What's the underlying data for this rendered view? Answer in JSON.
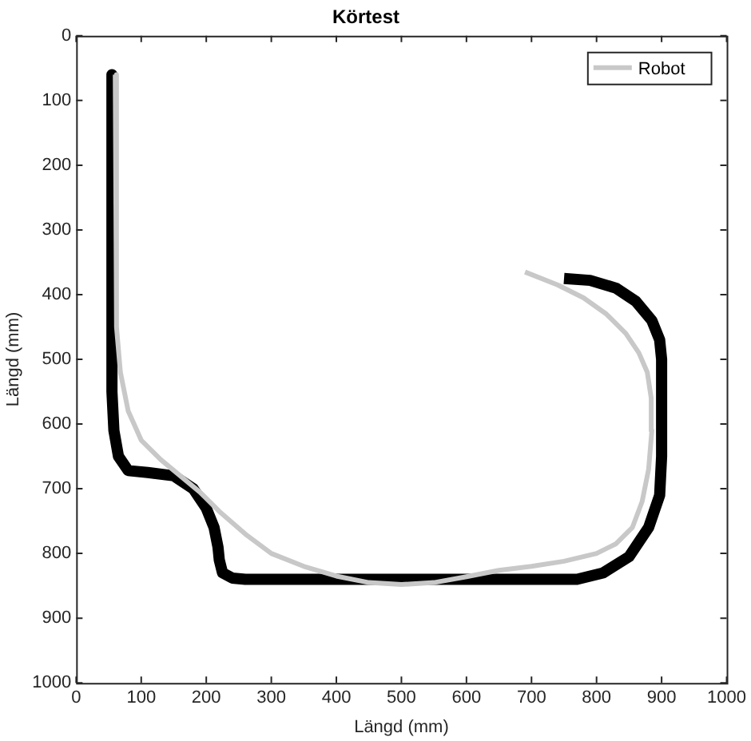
{
  "chart_data": {
    "type": "line",
    "title": "Körtest",
    "xlabel": "Längd (mm)",
    "ylabel": "Längd (mm)",
    "xlim": [
      0,
      1000
    ],
    "xticks": [
      0,
      100,
      200,
      300,
      400,
      500,
      600,
      700,
      800,
      900,
      1000
    ],
    "ylim": [
      1000,
      0
    ],
    "yticks": [
      0,
      100,
      200,
      300,
      400,
      500,
      600,
      700,
      800,
      900,
      1000
    ],
    "grid": false,
    "legend": "top right",
    "marker": "none",
    "line_style": "solid",
    "series": [
      {
        "color": "#000000",
        "x": [
          55,
          55,
          58,
          65,
          80,
          110,
          150,
          180,
          200,
          212,
          218,
          220,
          225,
          240,
          260,
          290,
          400,
          500,
          600,
          700,
          770,
          810,
          850,
          880,
          897,
          900,
          900,
          897,
          885,
          860,
          830,
          790,
          750
        ],
        "values": [
          60,
          550,
          610,
          650,
          672,
          675,
          680,
          700,
          730,
          760,
          790,
          810,
          830,
          838,
          840,
          840,
          840,
          840,
          840,
          840,
          840,
          830,
          805,
          760,
          710,
          650,
          500,
          470,
          440,
          410,
          390,
          378,
          375
        ]
      },
      {
        "name": "Robot",
        "color": "#c8c8c8",
        "x": [
          60,
          62,
          68,
          80,
          100,
          130,
          160,
          190,
          220,
          260,
          300,
          350,
          400,
          450,
          500,
          550,
          600,
          650,
          700,
          750,
          800,
          830,
          855,
          870,
          880,
          885,
          884,
          878,
          865,
          845,
          815,
          780,
          740,
          690
        ],
        "values": [
          60,
          450,
          520,
          580,
          625,
          655,
          680,
          705,
          735,
          770,
          800,
          820,
          835,
          845,
          848,
          845,
          836,
          826,
          820,
          812,
          800,
          785,
          760,
          720,
          670,
          610,
          560,
          520,
          490,
          460,
          430,
          405,
          385,
          365
        ]
      }
    ]
  }
}
